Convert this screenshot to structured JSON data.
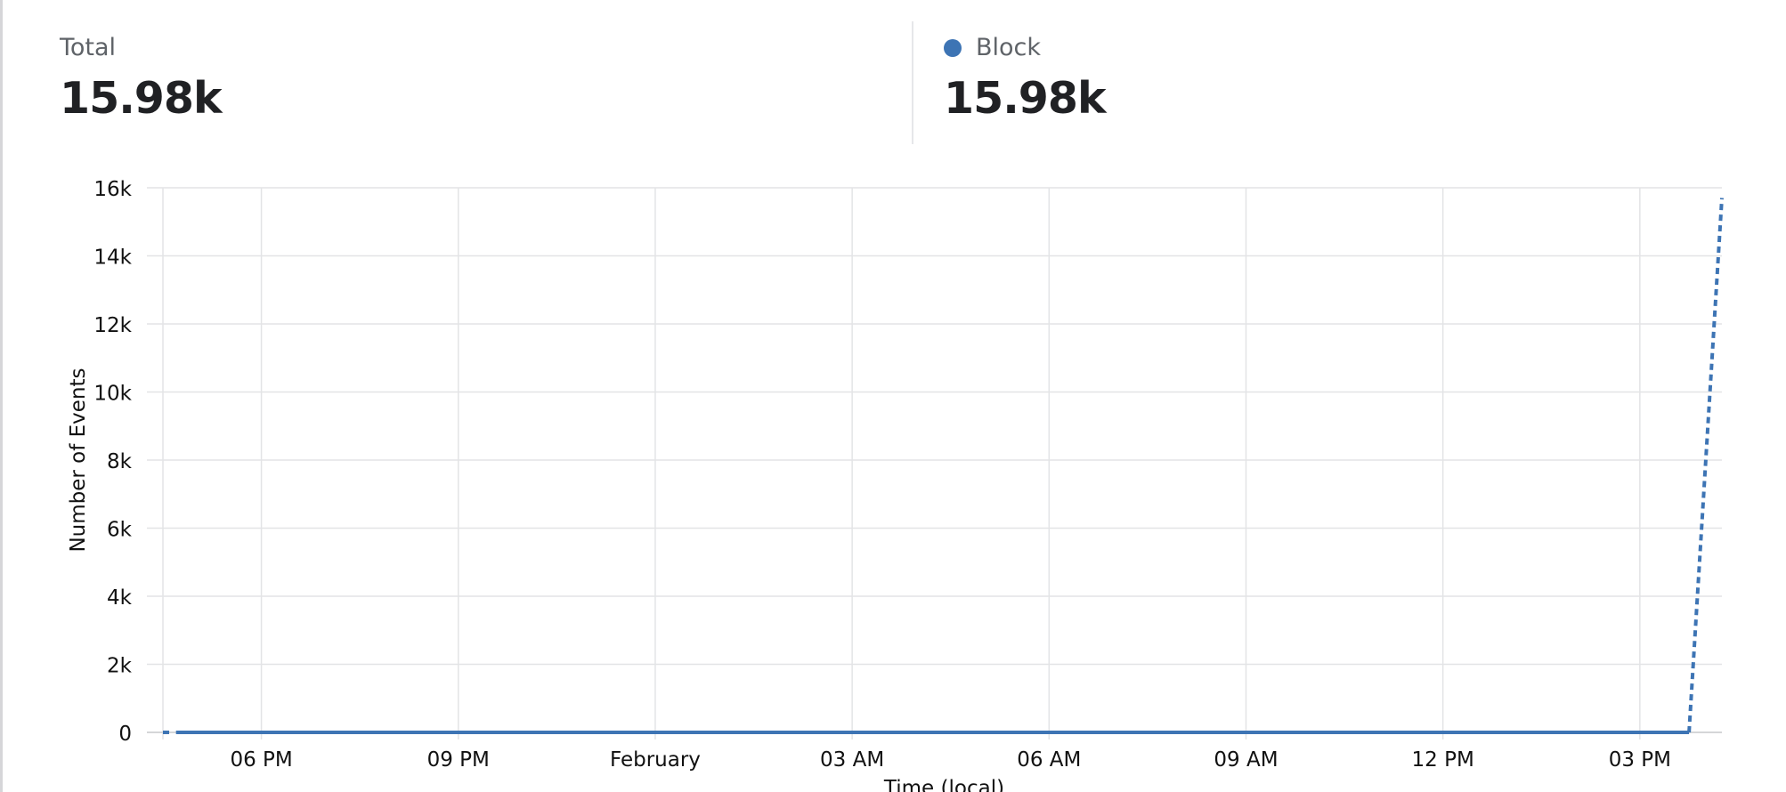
{
  "summary": {
    "total": {
      "label": "Total",
      "value": "15.98k"
    },
    "series": {
      "label": "Block",
      "value": "15.98k",
      "color": "#3d74b4"
    }
  },
  "chart_data": {
    "type": "line",
    "xlabel": "Time (local)",
    "ylabel": "Number of Events",
    "x_ticks": [
      "06 PM",
      "09 PM",
      "February",
      "03 AM",
      "06 AM",
      "09 AM",
      "12 PM",
      "03 PM"
    ],
    "y_ticks": [
      "0",
      "2k",
      "4k",
      "6k",
      "8k",
      "10k",
      "12k",
      "14k",
      "16k"
    ],
    "ylim": [
      0,
      16000
    ],
    "x_range_hours": [
      -1.5,
      22.25
    ],
    "grid": true,
    "series": [
      {
        "name": "Block",
        "color": "#3d74b4",
        "segments": [
          {
            "style": "dashed",
            "x": [
              -1.5,
              -1.4
            ],
            "y": [
              0,
              0
            ]
          },
          {
            "style": "solid",
            "x": [
              -1.3,
              21.75
            ],
            "y": [
              0,
              0
            ]
          },
          {
            "style": "dashed",
            "x": [
              21.75,
              22.25
            ],
            "y": [
              0,
              15700
            ]
          }
        ]
      }
    ]
  }
}
